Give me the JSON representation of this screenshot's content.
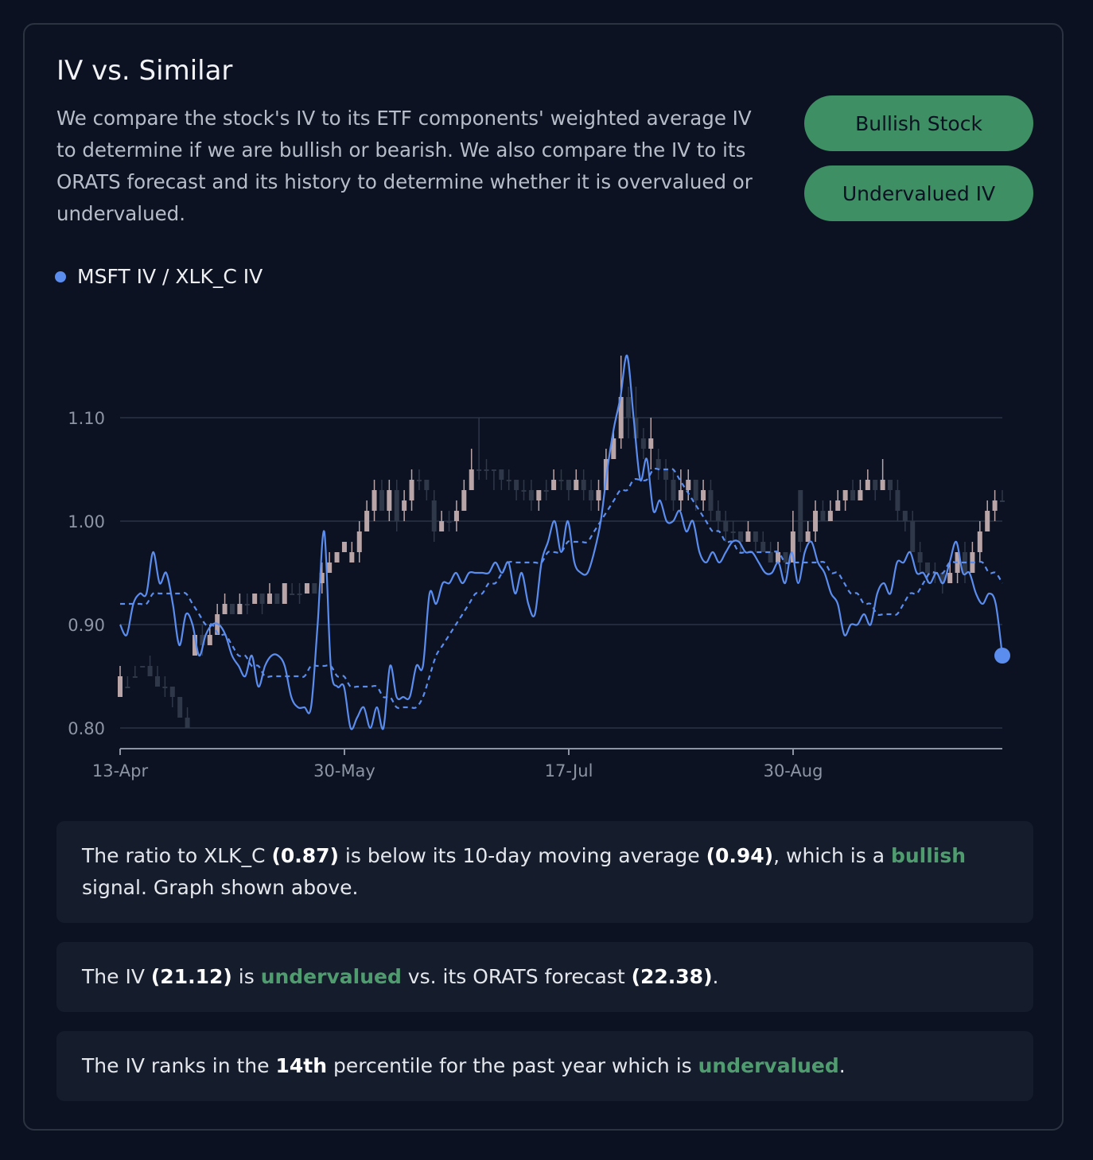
{
  "header": {
    "title": "IV vs. Similar",
    "description": "We compare the stock's IV to its ETF components' weighted average IV to determine if we are bullish or bearish. We also compare the IV to its ORATS forecast and its history to determine whether it is overvalued or undervalued."
  },
  "badges": {
    "stock_signal": "Bullish Stock",
    "iv_signal": "Undervalued IV"
  },
  "colors": {
    "ratio_line": "#5b8def",
    "positive": "#3e8f63",
    "candle_up": "#2e3849",
    "candle_down": "#b9a5a8"
  },
  "chart_data": {
    "type": "line",
    "legend": [
      "MSFT IV / XLK_C IV"
    ],
    "legend_placement": "top-left",
    "x_ticks": [
      "13-Apr",
      "30-May",
      "17-Jul",
      "30-Aug"
    ],
    "y_ticks": [
      "0.80",
      "0.90",
      "1.00",
      "1.10"
    ],
    "ylim": [
      0.78,
      1.17
    ],
    "grid": true,
    "series": [
      {
        "name": "MSFT IV / XLK_C IV",
        "style": "solid",
        "values": [
          0.9,
          0.89,
          0.92,
          0.93,
          0.93,
          0.97,
          0.94,
          0.95,
          0.92,
          0.88,
          0.91,
          0.9,
          0.87,
          0.89,
          0.9,
          0.9,
          0.89,
          0.87,
          0.86,
          0.85,
          0.87,
          0.84,
          0.86,
          0.87,
          0.87,
          0.86,
          0.83,
          0.82,
          0.82,
          0.82,
          0.9,
          0.99,
          0.86,
          0.84,
          0.84,
          0.8,
          0.81,
          0.82,
          0.8,
          0.82,
          0.8,
          0.86,
          0.83,
          0.83,
          0.83,
          0.86,
          0.86,
          0.93,
          0.92,
          0.94,
          0.94,
          0.95,
          0.94,
          0.95,
          0.95,
          0.95,
          0.95,
          0.96,
          0.95,
          0.96,
          0.93,
          0.95,
          0.92,
          0.91,
          0.96,
          0.98,
          1.0,
          0.97,
          1.0,
          0.96,
          0.95,
          0.95,
          0.97,
          1.0,
          1.05,
          1.09,
          1.12,
          1.16,
          1.1,
          1.04,
          1.06,
          1.01,
          1.02,
          1.0,
          1.0,
          1.01,
          0.99,
          1.0,
          0.97,
          0.96,
          0.97,
          0.96,
          0.97,
          0.98,
          0.98,
          0.97,
          0.97,
          0.96,
          0.95,
          0.95,
          0.96,
          0.94,
          0.97,
          0.94,
          0.97,
          0.98,
          0.96,
          0.95,
          0.93,
          0.92,
          0.89,
          0.9,
          0.9,
          0.91,
          0.9,
          0.93,
          0.94,
          0.93,
          0.96,
          0.96,
          0.97,
          0.95,
          0.95,
          0.94,
          0.95,
          0.94,
          0.96,
          0.98,
          0.95,
          0.95,
          0.93,
          0.92,
          0.93,
          0.92,
          0.87
        ]
      },
      {
        "name": "",
        "style": "dashed",
        "values": [
          0.92,
          0.92,
          0.92,
          0.92,
          0.92,
          0.93,
          0.93,
          0.93,
          0.93,
          0.93,
          0.93,
          0.92,
          0.91,
          0.9,
          0.9,
          0.89,
          0.89,
          0.88,
          0.87,
          0.87,
          0.86,
          0.86,
          0.85,
          0.85,
          0.85,
          0.85,
          0.85,
          0.85,
          0.85,
          0.86,
          0.86,
          0.86,
          0.86,
          0.85,
          0.85,
          0.84,
          0.84,
          0.84,
          0.84,
          0.84,
          0.83,
          0.83,
          0.82,
          0.82,
          0.82,
          0.82,
          0.83,
          0.85,
          0.87,
          0.88,
          0.89,
          0.9,
          0.91,
          0.92,
          0.93,
          0.93,
          0.94,
          0.94,
          0.95,
          0.96,
          0.96,
          0.96,
          0.96,
          0.96,
          0.96,
          0.97,
          0.97,
          0.97,
          0.98,
          0.98,
          0.98,
          0.98,
          0.99,
          1.0,
          1.01,
          1.02,
          1.03,
          1.03,
          1.04,
          1.04,
          1.04,
          1.05,
          1.05,
          1.05,
          1.05,
          1.04,
          1.03,
          1.02,
          1.01,
          1.0,
          0.99,
          0.99,
          0.98,
          0.98,
          0.97,
          0.97,
          0.97,
          0.97,
          0.97,
          0.97,
          0.97,
          0.96,
          0.96,
          0.96,
          0.96,
          0.96,
          0.96,
          0.96,
          0.95,
          0.95,
          0.94,
          0.93,
          0.93,
          0.92,
          0.92,
          0.91,
          0.91,
          0.91,
          0.91,
          0.92,
          0.93,
          0.93,
          0.94,
          0.95,
          0.95,
          0.95,
          0.96,
          0.96,
          0.96,
          0.96,
          0.96,
          0.96,
          0.95,
          0.95,
          0.94
        ]
      }
    ],
    "candles": [
      [
        0.85,
        0.83,
        0.86,
        0.83
      ],
      [
        0.84,
        0.84,
        0.85,
        0.84
      ],
      [
        0.85,
        0.85,
        0.86,
        0.85
      ],
      [
        0.86,
        0.86,
        0.86,
        0.86
      ],
      [
        0.85,
        0.86,
        0.87,
        0.85
      ],
      [
        0.84,
        0.85,
        0.86,
        0.84
      ],
      [
        0.84,
        0.84,
        0.85,
        0.83
      ],
      [
        0.83,
        0.84,
        0.84,
        0.82
      ],
      [
        0.81,
        0.83,
        0.83,
        0.81
      ],
      [
        0.8,
        0.81,
        0.82,
        0.8
      ],
      [
        0.89,
        0.87,
        0.89,
        0.87
      ],
      [
        0.88,
        0.89,
        0.9,
        0.87
      ],
      [
        0.89,
        0.88,
        0.9,
        0.88
      ],
      [
        0.91,
        0.89,
        0.92,
        0.89
      ],
      [
        0.92,
        0.91,
        0.93,
        0.91
      ],
      [
        0.91,
        0.92,
        0.92,
        0.91
      ],
      [
        0.92,
        0.91,
        0.93,
        0.91
      ],
      [
        0.92,
        0.92,
        0.93,
        0.91
      ],
      [
        0.93,
        0.92,
        0.93,
        0.92
      ],
      [
        0.92,
        0.93,
        0.93,
        0.91
      ],
      [
        0.93,
        0.92,
        0.94,
        0.92
      ],
      [
        0.92,
        0.93,
        0.93,
        0.92
      ],
      [
        0.94,
        0.92,
        0.94,
        0.92
      ],
      [
        0.93,
        0.93,
        0.94,
        0.93
      ],
      [
        0.93,
        0.93,
        0.94,
        0.92
      ],
      [
        0.94,
        0.93,
        0.94,
        0.93
      ],
      [
        0.93,
        0.94,
        0.94,
        0.93
      ],
      [
        0.95,
        0.94,
        0.96,
        0.93
      ],
      [
        0.96,
        0.95,
        0.97,
        0.95
      ],
      [
        0.97,
        0.96,
        0.97,
        0.96
      ],
      [
        0.98,
        0.97,
        0.98,
        0.97
      ],
      [
        0.97,
        0.96,
        0.98,
        0.96
      ],
      [
        0.99,
        0.97,
        1.0,
        0.96
      ],
      [
        1.01,
        0.99,
        1.02,
        0.99
      ],
      [
        1.03,
        1.01,
        1.04,
        1.0
      ],
      [
        1.01,
        1.03,
        1.04,
        1.01
      ],
      [
        1.03,
        1.01,
        1.04,
        1.0
      ],
      [
        1.0,
        1.03,
        1.04,
        0.99
      ],
      [
        1.02,
        1.01,
        1.03,
        1.0
      ],
      [
        1.04,
        1.02,
        1.05,
        1.01
      ],
      [
        1.04,
        1.04,
        1.05,
        1.03
      ],
      [
        1.03,
        1.04,
        1.04,
        1.02
      ],
      [
        0.99,
        1.02,
        1.03,
        0.98
      ],
      [
        1.0,
        0.99,
        1.01,
        0.99
      ],
      [
        1.0,
        1.0,
        1.01,
        0.99
      ],
      [
        1.01,
        1.0,
        1.02,
        0.99
      ],
      [
        1.03,
        1.01,
        1.04,
        1.01
      ],
      [
        1.05,
        1.03,
        1.07,
        1.03
      ],
      [
        1.05,
        1.05,
        1.1,
        1.04
      ],
      [
        1.05,
        1.05,
        1.06,
        1.04
      ],
      [
        1.05,
        1.05,
        1.05,
        1.03
      ],
      [
        1.04,
        1.05,
        1.05,
        1.03
      ],
      [
        1.04,
        1.04,
        1.05,
        1.03
      ],
      [
        1.03,
        1.04,
        1.04,
        1.02
      ],
      [
        1.03,
        1.03,
        1.04,
        1.02
      ],
      [
        1.02,
        1.03,
        1.04,
        1.01
      ],
      [
        1.03,
        1.02,
        1.03,
        1.01
      ],
      [
        1.03,
        1.03,
        1.04,
        1.02
      ],
      [
        1.04,
        1.03,
        1.05,
        1.03
      ],
      [
        1.04,
        1.04,
        1.05,
        1.03
      ],
      [
        1.03,
        1.04,
        1.04,
        1.02
      ],
      [
        1.04,
        1.03,
        1.05,
        1.03
      ],
      [
        1.03,
        1.04,
        1.05,
        1.02
      ],
      [
        1.02,
        1.03,
        1.04,
        1.01
      ],
      [
        1.03,
        1.02,
        1.04,
        1.01
      ],
      [
        1.06,
        1.03,
        1.07,
        1.03
      ],
      [
        1.08,
        1.06,
        1.09,
        1.06
      ],
      [
        1.12,
        1.08,
        1.16,
        1.07
      ],
      [
        1.1,
        1.12,
        1.13,
        1.08
      ],
      [
        1.08,
        1.1,
        1.13,
        1.07
      ],
      [
        1.07,
        1.08,
        1.09,
        1.06
      ],
      [
        1.08,
        1.07,
        1.1,
        1.05
      ],
      [
        1.05,
        1.06,
        1.07,
        1.04
      ],
      [
        1.04,
        1.05,
        1.06,
        1.02
      ],
      [
        1.02,
        1.04,
        1.05,
        1.01
      ],
      [
        1.03,
        1.02,
        1.05,
        1.01
      ],
      [
        1.04,
        1.03,
        1.05,
        1.02
      ],
      [
        1.02,
        1.04,
        1.04,
        1.01
      ],
      [
        1.03,
        1.02,
        1.04,
        1.01
      ],
      [
        1.01,
        1.03,
        1.04,
        1.0
      ],
      [
        1.0,
        1.01,
        1.02,
        0.99
      ],
      [
        0.99,
        1.0,
        1.01,
        0.98
      ],
      [
        0.99,
        0.99,
        1.0,
        0.98
      ],
      [
        0.98,
        0.99,
        0.99,
        0.97
      ],
      [
        0.99,
        0.98,
        1.0,
        0.98
      ],
      [
        0.98,
        0.99,
        0.99,
        0.97
      ],
      [
        0.97,
        0.98,
        0.99,
        0.97
      ],
      [
        0.96,
        0.97,
        0.98,
        0.96
      ],
      [
        0.97,
        0.96,
        0.98,
        0.96
      ],
      [
        0.96,
        0.97,
        0.97,
        0.95
      ],
      [
        0.99,
        0.96,
        1.01,
        0.96
      ],
      [
        0.98,
        1.03,
        1.03,
        0.97
      ],
      [
        0.99,
        0.98,
        1.0,
        0.98
      ],
      [
        1.01,
        0.99,
        1.02,
        0.98
      ],
      [
        1.0,
        1.01,
        1.02,
        1.0
      ],
      [
        1.01,
        1.0,
        1.02,
        1.0
      ],
      [
        1.02,
        1.01,
        1.03,
        1.01
      ],
      [
        1.03,
        1.02,
        1.03,
        1.01
      ],
      [
        1.02,
        1.03,
        1.04,
        1.02
      ],
      [
        1.03,
        1.02,
        1.04,
        1.02
      ],
      [
        1.04,
        1.03,
        1.05,
        1.03
      ],
      [
        1.03,
        1.04,
        1.04,
        1.02
      ],
      [
        1.04,
        1.03,
        1.06,
        1.03
      ],
      [
        1.03,
        1.04,
        1.04,
        1.02
      ],
      [
        1.01,
        1.03,
        1.04,
        1.0
      ],
      [
        1.0,
        1.01,
        1.01,
        0.99
      ],
      [
        0.97,
        1.0,
        1.01,
        0.97
      ],
      [
        0.96,
        0.97,
        0.98,
        0.95
      ],
      [
        0.95,
        0.96,
        0.96,
        0.94
      ],
      [
        0.95,
        0.95,
        0.96,
        0.94
      ],
      [
        0.94,
        0.95,
        0.95,
        0.93
      ],
      [
        0.95,
        0.94,
        0.96,
        0.94
      ],
      [
        0.97,
        0.95,
        0.97,
        0.94
      ],
      [
        0.95,
        0.97,
        0.98,
        0.94
      ],
      [
        0.97,
        0.95,
        0.98,
        0.95
      ],
      [
        0.99,
        0.97,
        1.0,
        0.96
      ],
      [
        1.01,
        0.99,
        1.02,
        0.99
      ],
      [
        1.02,
        1.01,
        1.03,
        1.0
      ],
      [
        1.02,
        1.02,
        1.03,
        1.02
      ]
    ]
  },
  "analysis": {
    "line1": {
      "a": "The ratio to XLK_C ",
      "ratio": "(0.87)",
      "b": " is below its 10-day moving average ",
      "ma": "(0.94)",
      "c": ", which is a ",
      "signal": "bullish",
      "d": " signal. Graph shown above."
    },
    "line2": {
      "a": "The IV ",
      "iv": "(21.12)",
      "b": " is ",
      "verdict": "undervalued",
      "c": " vs. its ORATS forecast ",
      "forecast": "(22.38)",
      "d": "."
    },
    "line3": {
      "a": "The IV ranks in the ",
      "rank": "14th",
      "b": " percentile for the past year which is ",
      "verdict": "undervalued",
      "c": "."
    }
  }
}
